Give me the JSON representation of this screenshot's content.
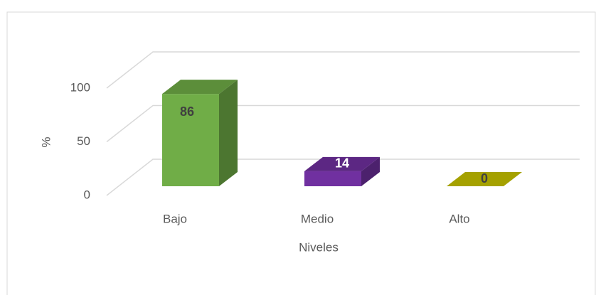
{
  "chart_data": {
    "type": "bar3d",
    "x_label": "Niveles",
    "y_label": "%",
    "categories": [
      "Bajo",
      "Medio",
      "Alto"
    ],
    "values": [
      86,
      14,
      0
    ],
    "colors": [
      "#70ad47",
      "#7030a0",
      "#c9c400"
    ],
    "label_colors": [
      "#404040",
      "#ffffff",
      "#404040"
    ],
    "ylim": [
      0,
      100
    ],
    "yticks": [
      0,
      50,
      100
    ],
    "grid": true
  }
}
